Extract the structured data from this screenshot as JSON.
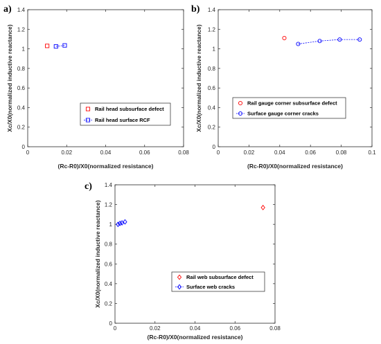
{
  "chart_data": [
    {
      "type": "scatter",
      "panel_label": "a)",
      "xlabel": "(Rc-R0)/X0(normalized resistance)",
      "ylabel": "Xc/X0(normalized inductive reactance)",
      "xlim": [
        0,
        0.08
      ],
      "ylim": [
        0,
        1.4
      ],
      "xticks": [
        "0",
        "0.02",
        "0.04",
        "0.06",
        "0.08"
      ],
      "yticks": [
        "0",
        "0.2",
        "0.4",
        "0.6",
        "0.8",
        "1",
        "1.2",
        "1.4"
      ],
      "legend_position": "lower-left",
      "series": [
        {
          "name": "Rail head subsurface defect",
          "color": "#ff0000",
          "marker": "square",
          "line": false,
          "x": [
            0.01
          ],
          "y": [
            1.03
          ]
        },
        {
          "name": "Rail head surface RCF",
          "color": "#0000ff",
          "marker": "square",
          "line": true,
          "x": [
            0.0145,
            0.019
          ],
          "y": [
            1.025,
            1.035
          ]
        }
      ]
    },
    {
      "type": "scatter",
      "panel_label": "b)",
      "xlabel": "(Rc-R0)/X0(normalized resistance)",
      "ylabel": "Xc/X0(normalized inductive reactance)",
      "xlim": [
        0,
        0.1
      ],
      "ylim": [
        0,
        1.4
      ],
      "xticks": [
        "0",
        "0.02",
        "0.04",
        "0.06",
        "0.08",
        "0.1"
      ],
      "yticks": [
        "0",
        "0.2",
        "0.4",
        "0.6",
        "0.8",
        "1",
        "1.2",
        "1.4"
      ],
      "legend_position": "lower-left",
      "series": [
        {
          "name": "Rail gauge corner subsurface defect",
          "color": "#ff0000",
          "marker": "circle",
          "line": false,
          "x": [
            0.043
          ],
          "y": [
            1.11
          ]
        },
        {
          "name": "Surface gauge corner cracks",
          "color": "#0000ff",
          "marker": "circle",
          "line": true,
          "x": [
            0.052,
            0.066,
            0.079,
            0.092
          ],
          "y": [
            1.05,
            1.08,
            1.095,
            1.095
          ]
        }
      ]
    },
    {
      "type": "scatter",
      "panel_label": "c)",
      "xlabel": "(Rc-R0)/X0(normalized resistance)",
      "ylabel": "Xc/X0(normalized inductive reactance)",
      "xlim": [
        0,
        0.08
      ],
      "ylim": [
        0,
        1.4
      ],
      "xticks": [
        "0",
        "0.02",
        "0.04",
        "0.06",
        "0.08"
      ],
      "yticks": [
        "0",
        "0.2",
        "0.4",
        "0.6",
        "0.8",
        "1",
        "1.2",
        "1.4"
      ],
      "legend_position": "lower-right",
      "series": [
        {
          "name": "Rail web subsurface defect",
          "color": "#ff0000",
          "marker": "diamond",
          "line": false,
          "x": [
            0.074
          ],
          "y": [
            1.17
          ]
        },
        {
          "name": "Surface web cracks",
          "color": "#0000ff",
          "marker": "diamond",
          "line": true,
          "x": [
            0.0015,
            0.0025,
            0.0035,
            0.005
          ],
          "y": [
            1.0,
            1.01,
            1.015,
            1.025
          ]
        }
      ]
    }
  ]
}
